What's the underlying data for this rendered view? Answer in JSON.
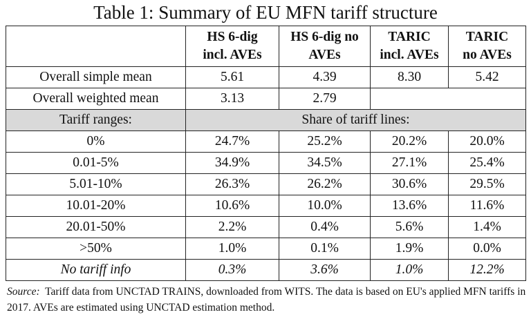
{
  "title": "Table 1: Summary of EU MFN tariff structure",
  "columns": [
    {
      "line1": "HS 6-dig",
      "line2": "incl. AVEs"
    },
    {
      "line1": "HS 6-dig no",
      "line2": "AVEs"
    },
    {
      "line1": "TARIC",
      "line2": "incl. AVEs"
    },
    {
      "line1": "TARIC",
      "line2": "no AVEs"
    }
  ],
  "means": [
    {
      "label": "Overall simple mean",
      "values": [
        "5.61",
        "4.39",
        "8.30",
        "5.42"
      ]
    },
    {
      "label": "Overall weighted mean",
      "values": [
        "3.13",
        "2.79"
      ]
    }
  ],
  "section": {
    "label": "Tariff ranges:",
    "span_label": "Share of tariff lines:"
  },
  "rows": [
    {
      "label": "0%",
      "values": [
        "24.7%",
        "25.2%",
        "20.2%",
        "20.0%"
      ]
    },
    {
      "label": "0.01-5%",
      "values": [
        "34.9%",
        "34.5%",
        "27.1%",
        "25.4%"
      ]
    },
    {
      "label": "5.01-10%",
      "values": [
        "26.3%",
        "26.2%",
        "30.6%",
        "29.5%"
      ]
    },
    {
      "label": "10.01-20%",
      "values": [
        "10.6%",
        "10.0%",
        "13.6%",
        "11.6%"
      ]
    },
    {
      "label": "20.01-50%",
      "values": [
        "2.2%",
        "0.4%",
        "5.6%",
        "1.4%"
      ]
    },
    {
      "label": ">50%",
      "values": [
        "1.0%",
        "0.1%",
        "1.9%",
        "0.0%"
      ]
    },
    {
      "label": "No tariff info",
      "values": [
        "0.3%",
        "3.6%",
        "1.0%",
        "12.2%"
      ]
    }
  ],
  "source": {
    "label": "Source:",
    "text": "Tariff data from UNCTAD TRAINS, downloaded from WITS. The data is based on EU's applied MFN tariffs in 2017. AVEs are estimated using UNCTAD estimation method."
  }
}
